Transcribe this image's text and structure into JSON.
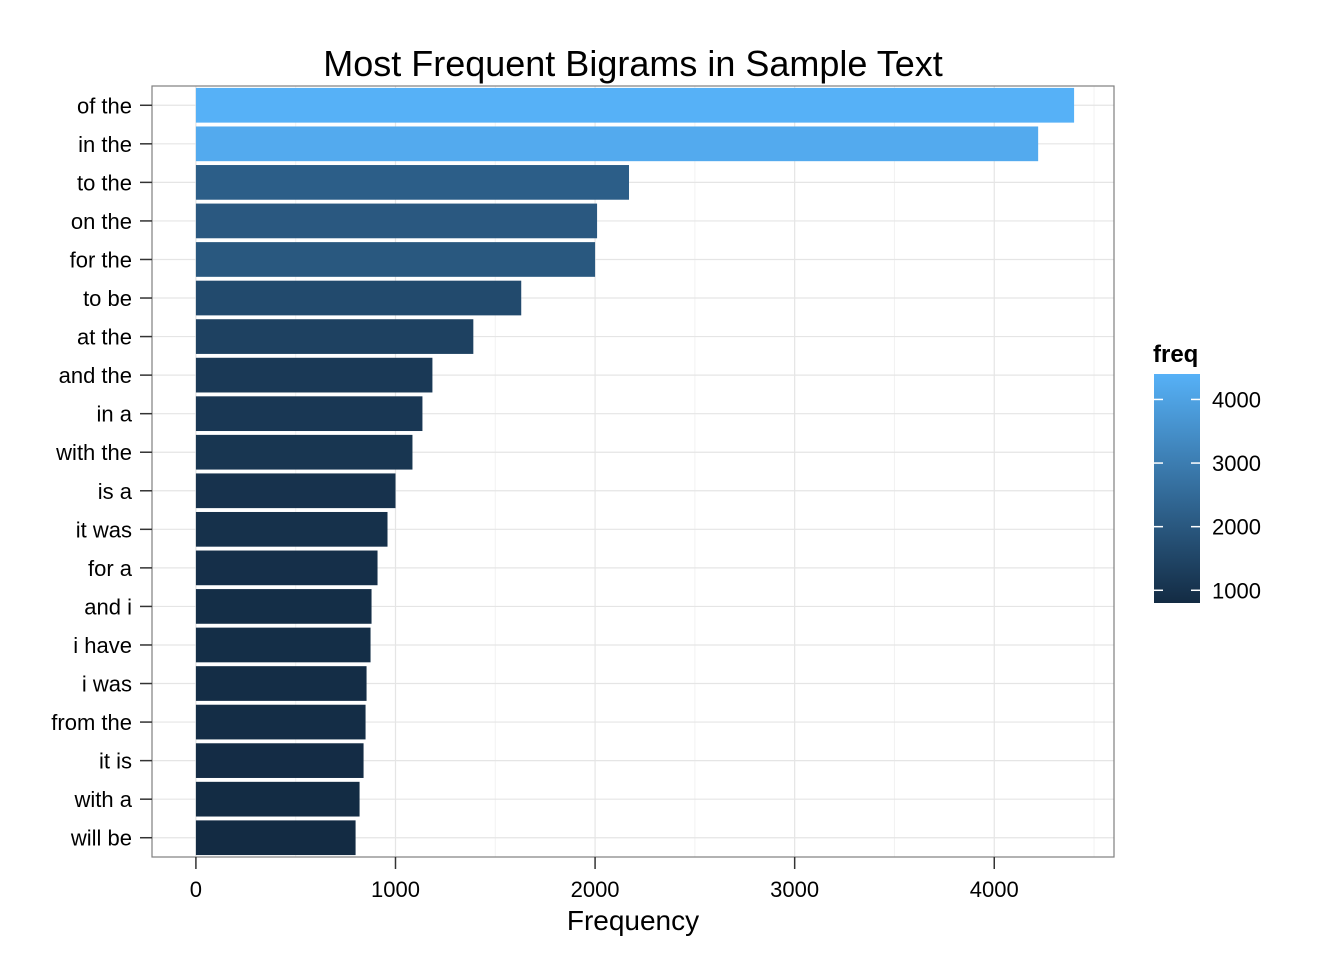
{
  "chart_data": {
    "type": "bar",
    "orientation": "horizontal",
    "title": "Most Frequent Bigrams in Sample Text",
    "xlabel": "Frequency",
    "ylabel": "",
    "categories": [
      "of the",
      "in the",
      "to the",
      "on the",
      "for the",
      "to be",
      "at the",
      "and the",
      "in a",
      "with the",
      "is a",
      "it was",
      "for a",
      "and i",
      "i have",
      "i was",
      "from the",
      "it is",
      "with a",
      "will be"
    ],
    "values": [
      4400,
      4220,
      2170,
      2010,
      2000,
      1630,
      1390,
      1185,
      1135,
      1085,
      1000,
      960,
      910,
      880,
      875,
      855,
      850,
      840,
      820,
      800
    ],
    "xlim": [
      -220,
      4600
    ],
    "xticks": [
      0,
      1000,
      2000,
      3000,
      4000
    ],
    "xtick_labels": [
      "0",
      "1000",
      "2000",
      "3000",
      "4000"
    ],
    "grid": true,
    "legend": {
      "title": "freq",
      "position": "right",
      "ticks": [
        1000,
        2000,
        3000,
        4000
      ],
      "tick_labels": [
        "1000",
        "2000",
        "3000",
        "4000"
      ],
      "range": [
        800,
        4400
      ],
      "color_low": "#132B43",
      "color_high": "#56B1F7"
    }
  }
}
